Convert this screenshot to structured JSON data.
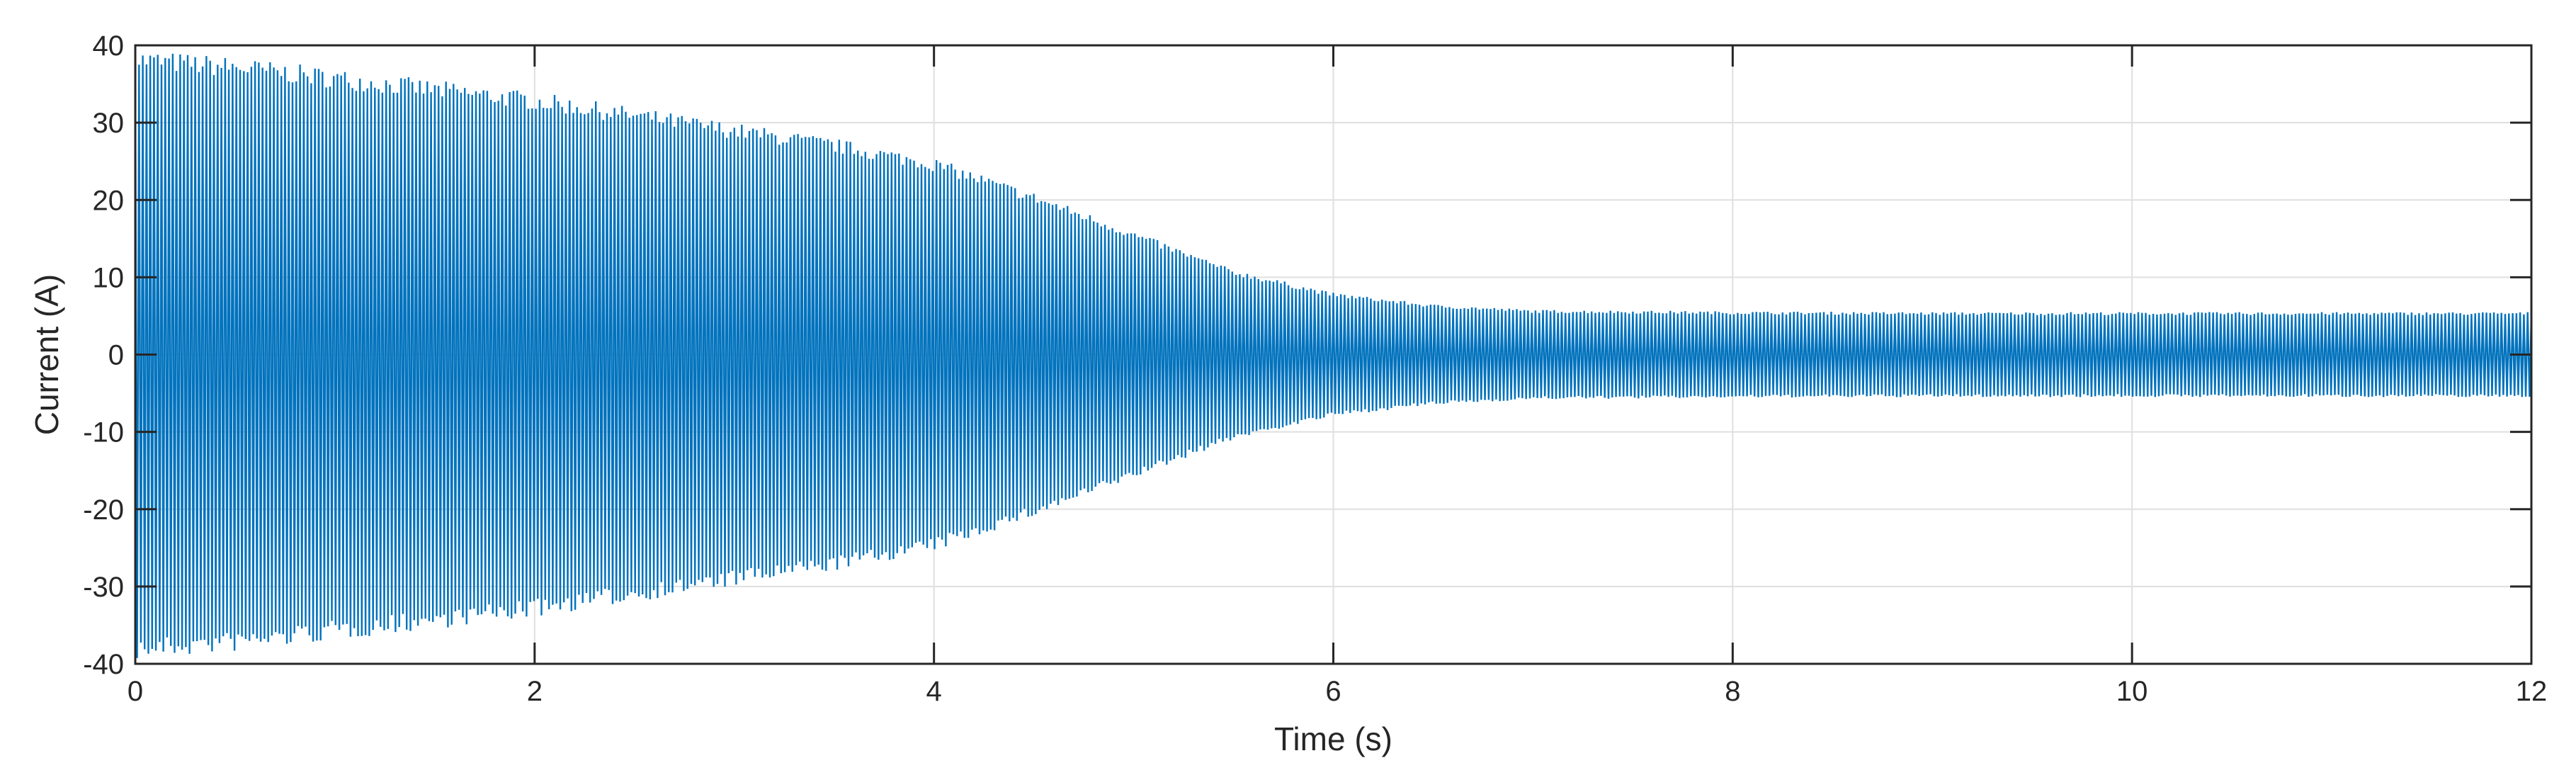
{
  "chart_data": {
    "type": "line",
    "title": "",
    "xlabel": "Time (s)",
    "ylabel": "Current (A)",
    "xlim": [
      0,
      12
    ],
    "ylim": [
      -40,
      40
    ],
    "xticks": [
      0,
      2,
      4,
      6,
      8,
      10,
      12
    ],
    "yticks": [
      -40,
      -30,
      -20,
      -10,
      0,
      10,
      20,
      30,
      40
    ],
    "grid": true,
    "legend": "none",
    "series": [
      {
        "color": "#0072BD",
        "waveform": "oscillation",
        "envelope_time": [
          0,
          0.5,
          1,
          1.5,
          2,
          2.5,
          3,
          3.5,
          4,
          4.5,
          5,
          5.5,
          6,
          6.5,
          7,
          8,
          9,
          10,
          11,
          12
        ],
        "envelope_amplitude": [
          39.5,
          38.5,
          37,
          35.5,
          34,
          32,
          30,
          28,
          25.5,
          21,
          16,
          11,
          8,
          6.5,
          5.8,
          5.6,
          5.5,
          5.5,
          5.5,
          5.5
        ]
      }
    ]
  }
}
